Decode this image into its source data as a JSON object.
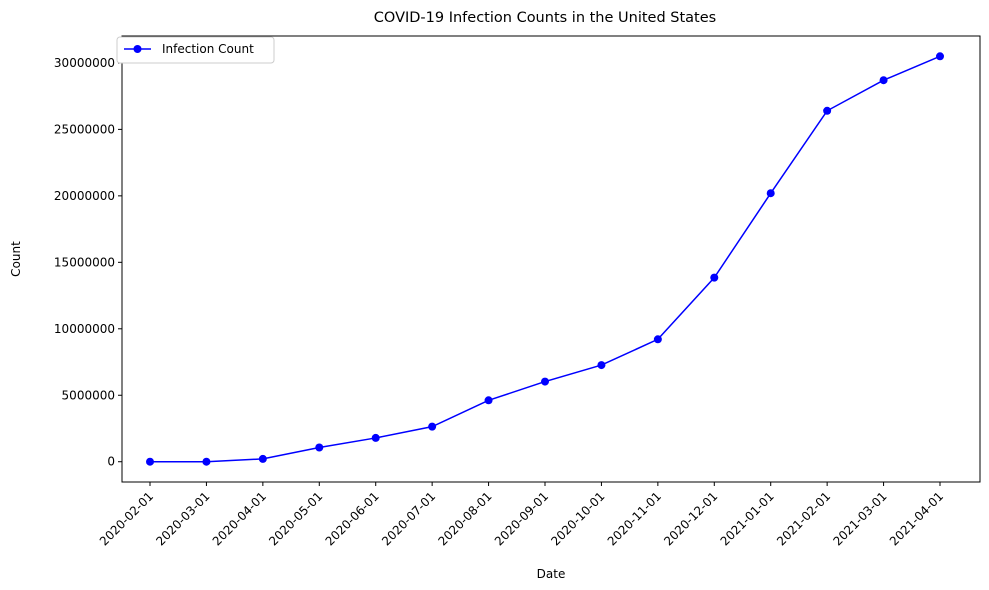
{
  "chart_data": {
    "type": "line",
    "title": "COVID-19 Infection Counts in the United States",
    "xlabel": "Date",
    "ylabel": "Count",
    "categories": [
      "2020-02-01",
      "2020-03-01",
      "2020-04-01",
      "2020-05-01",
      "2020-06-01",
      "2020-07-01",
      "2020-08-01",
      "2020-09-01",
      "2020-10-01",
      "2020-11-01",
      "2020-12-01",
      "2021-01-01",
      "2021-02-01",
      "2021-03-01",
      "2021-04-01"
    ],
    "series": [
      {
        "name": "Infection Count",
        "color": "#0000ff",
        "marker": "circle",
        "values": [
          8,
          24,
          213000,
          1070000,
          1790000,
          2640000,
          4620000,
          6030000,
          7270000,
          9210000,
          13850000,
          20200000,
          26400000,
          28700000,
          30500000
        ]
      }
    ],
    "ylim": [
      -1525000,
      32025000
    ],
    "yticks": [
      0,
      5000000,
      10000000,
      15000000,
      20000000,
      25000000,
      30000000
    ],
    "ytick_labels": [
      "0",
      "5000000",
      "10000000",
      "15000000",
      "20000000",
      "25000000",
      "30000000"
    ],
    "xtick_rotation": 45,
    "grid": false,
    "legend": {
      "position": "top-left",
      "entries": [
        "Infection Count"
      ]
    }
  }
}
